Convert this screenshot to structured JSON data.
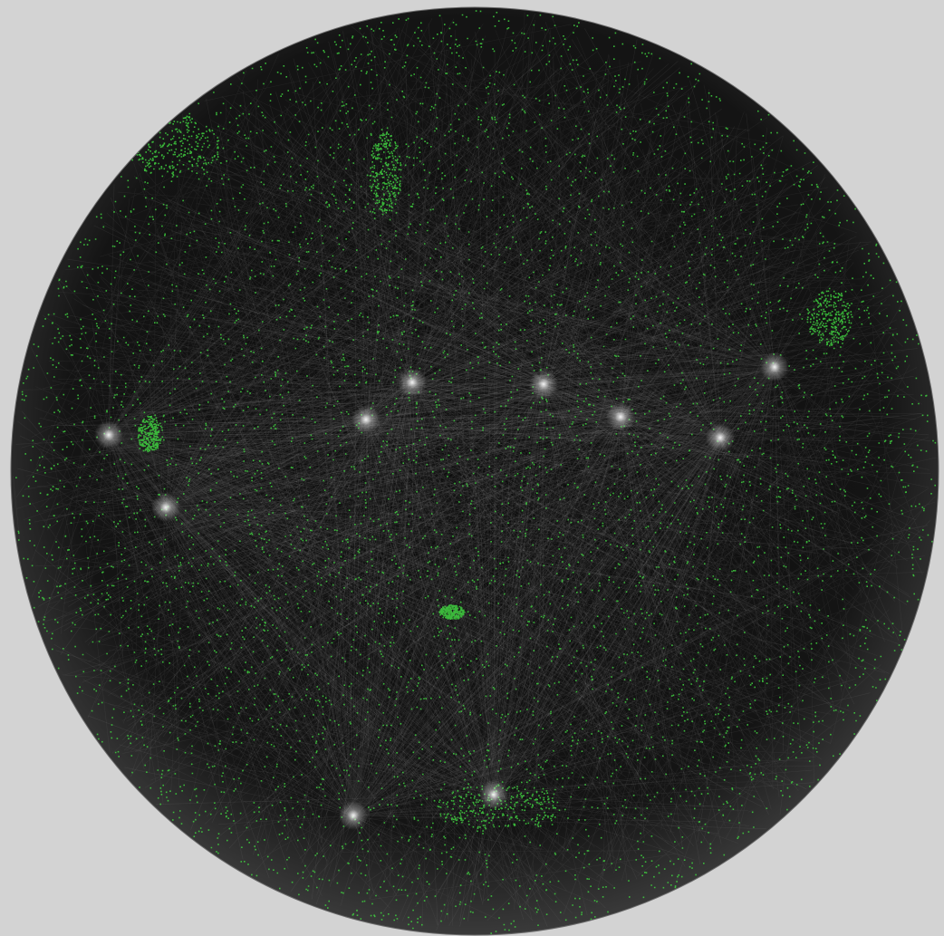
{
  "diagram": {
    "type": "network-graph",
    "layout": "spherical",
    "title": "",
    "colors": {
      "background": "#d3d3d3",
      "sphere_fill": "#050505",
      "edge_color": "#cfcfcf",
      "node_color": "#3fd23f",
      "hub_glow": "#ffffff"
    },
    "node_clusters": [
      {
        "name": "dense-cluster-left"
      },
      {
        "name": "dense-cluster-upper-left"
      },
      {
        "name": "dense-cluster-upper-center"
      },
      {
        "name": "dense-cluster-right"
      },
      {
        "name": "dense-cluster-lower-center"
      },
      {
        "name": "dense-cluster-bottom"
      }
    ],
    "hubs": [
      {
        "name": "hub-left-1"
      },
      {
        "name": "hub-left-2"
      },
      {
        "name": "hub-center-left"
      },
      {
        "name": "hub-center-left-2"
      },
      {
        "name": "hub-center"
      },
      {
        "name": "hub-center-right"
      },
      {
        "name": "hub-right"
      },
      {
        "name": "hub-right-2"
      },
      {
        "name": "hub-bottom"
      },
      {
        "name": "hub-bottom-left"
      }
    ]
  }
}
